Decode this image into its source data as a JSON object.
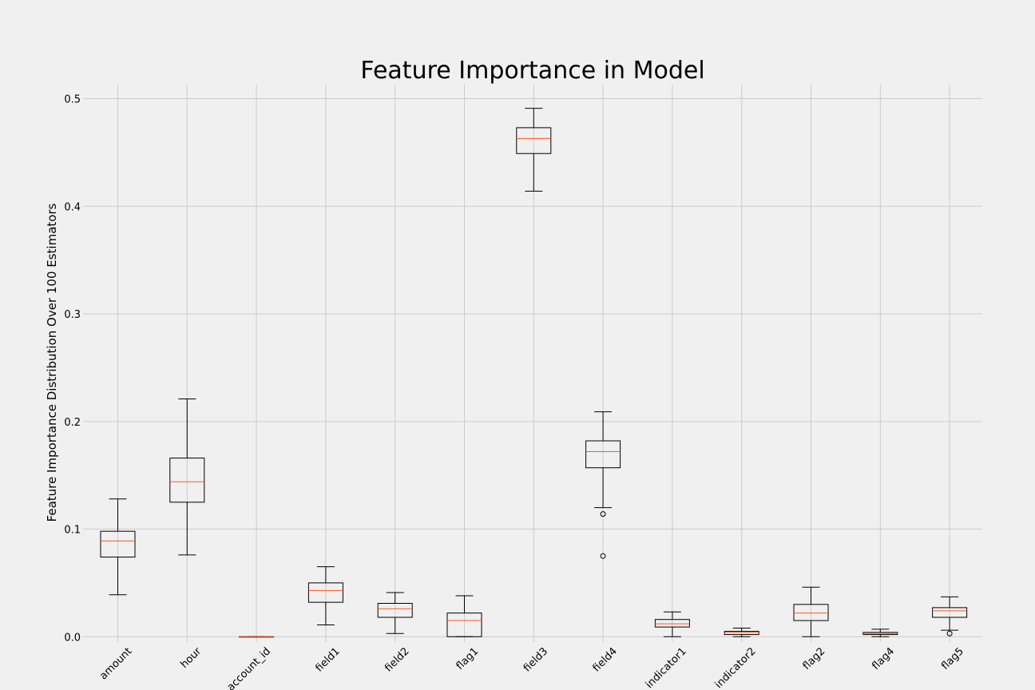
{
  "chart_data": {
    "type": "boxplot",
    "title": "Feature Importance in Model",
    "xlabel": "",
    "ylabel": "Feature Importance Distribution Over 100 Estimators",
    "ylim": [
      -0.005,
      0.513
    ],
    "yticks": [
      0.0,
      0.1,
      0.2,
      0.3,
      0.4,
      0.5
    ],
    "ytick_labels": [
      "0.0",
      "0.1",
      "0.2",
      "0.3",
      "0.4",
      "0.5"
    ],
    "grid": true,
    "categories": [
      "amount",
      "hour",
      "account_id",
      "field1",
      "field2",
      "flag1",
      "field3",
      "field4",
      "indicator1",
      "indicator2",
      "flag2",
      "flag4",
      "flag5"
    ],
    "boxes": [
      {
        "name": "amount",
        "whislo": 0.039,
        "q1": 0.074,
        "med": 0.089,
        "q3": 0.098,
        "whishi": 0.128,
        "fliers": []
      },
      {
        "name": "hour",
        "whislo": 0.076,
        "q1": 0.125,
        "med": 0.144,
        "q3": 0.166,
        "whishi": 0.221,
        "fliers": []
      },
      {
        "name": "account_id",
        "whislo": 0.0,
        "q1": 0.0,
        "med": 0.0,
        "q3": 0.0,
        "whishi": 0.0,
        "fliers": []
      },
      {
        "name": "field1",
        "whislo": 0.011,
        "q1": 0.032,
        "med": 0.043,
        "q3": 0.05,
        "whishi": 0.065,
        "fliers": []
      },
      {
        "name": "field2",
        "whislo": 0.003,
        "q1": 0.018,
        "med": 0.026,
        "q3": 0.031,
        "whishi": 0.041,
        "fliers": []
      },
      {
        "name": "flag1",
        "whislo": 0.0,
        "q1": 0.0,
        "med": 0.015,
        "q3": 0.022,
        "whishi": 0.038,
        "fliers": []
      },
      {
        "name": "field3",
        "whislo": 0.414,
        "q1": 0.449,
        "med": 0.463,
        "q3": 0.473,
        "whishi": 0.491,
        "fliers": []
      },
      {
        "name": "field4",
        "whislo": 0.12,
        "q1": 0.157,
        "med": 0.172,
        "q3": 0.182,
        "whishi": 0.209,
        "fliers": [
          0.114,
          0.075
        ]
      },
      {
        "name": "indicator1",
        "whislo": 0.0,
        "q1": 0.009,
        "med": 0.012,
        "q3": 0.016,
        "whishi": 0.023,
        "fliers": []
      },
      {
        "name": "indicator2",
        "whislo": 0.0,
        "q1": 0.002,
        "med": 0.004,
        "q3": 0.005,
        "whishi": 0.008,
        "fliers": []
      },
      {
        "name": "flag2",
        "whislo": 0.0,
        "q1": 0.015,
        "med": 0.022,
        "q3": 0.03,
        "whishi": 0.046,
        "fliers": []
      },
      {
        "name": "flag4",
        "whislo": 0.0,
        "q1": 0.002,
        "med": 0.003,
        "q3": 0.004,
        "whishi": 0.007,
        "fliers": []
      },
      {
        "name": "flag5",
        "whislo": 0.006,
        "q1": 0.018,
        "med": 0.024,
        "q3": 0.027,
        "whishi": 0.037,
        "fliers": [
          0.003
        ]
      }
    ],
    "colors": {
      "background": "#f0f0f0",
      "grid": "#cbcbcb",
      "box": "#000000",
      "median": "#ff5722"
    }
  }
}
